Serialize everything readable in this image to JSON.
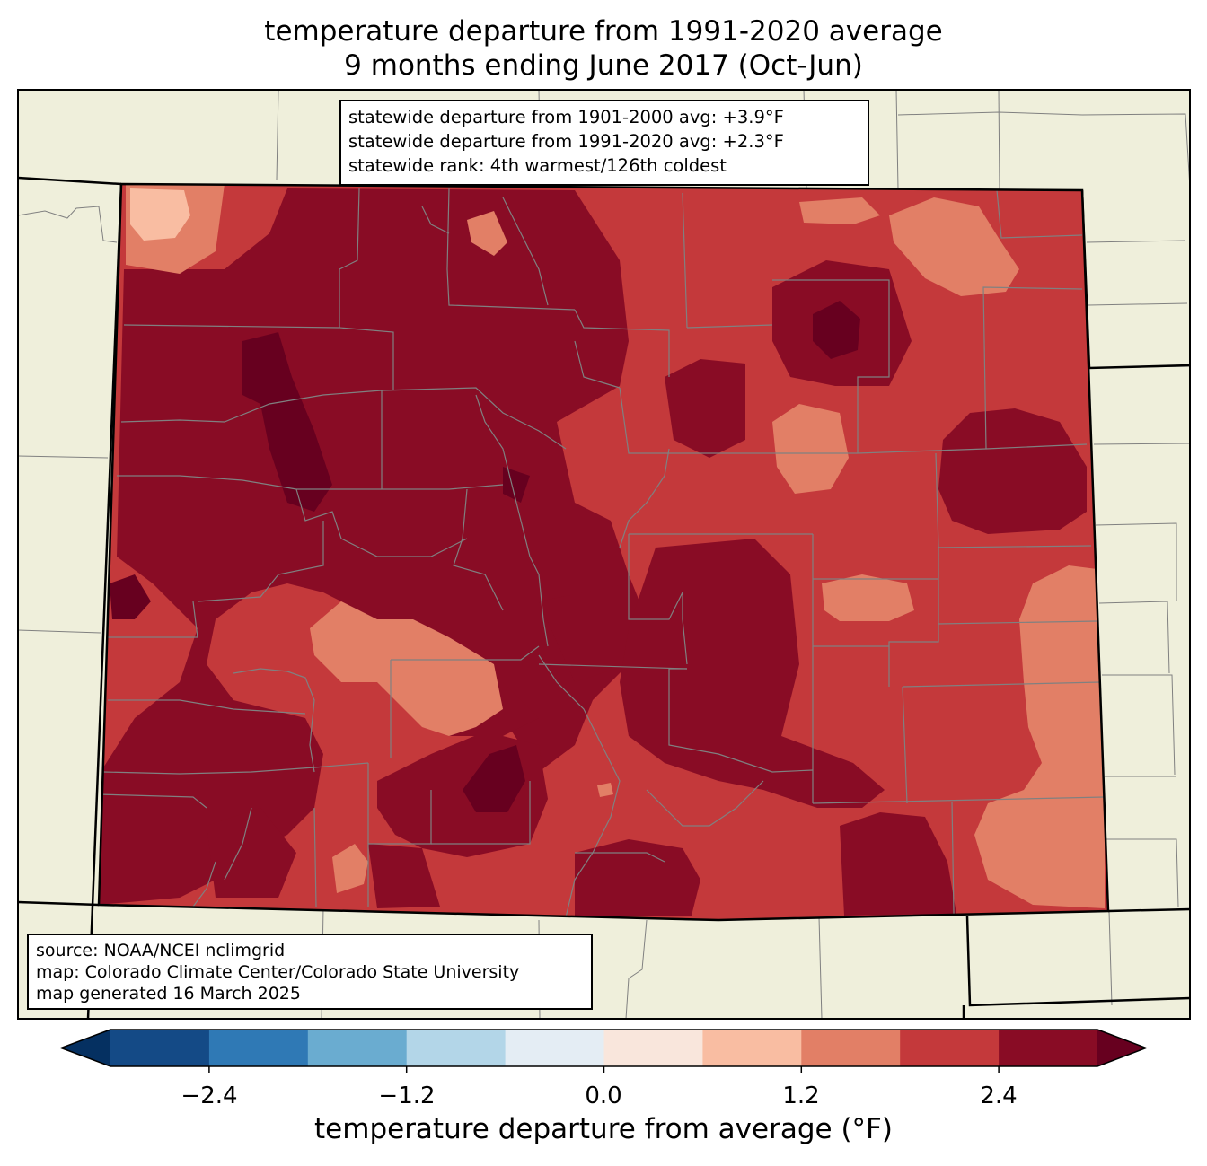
{
  "title": {
    "line1": "temperature departure from 1991-2020 average",
    "line2": "9 months ending June 2017 (Oct-Jun)"
  },
  "stats": {
    "line1": "statewide departure from 1901-2000 avg: +3.9°F",
    "line2": "statewide departure from 1991-2020 avg: +2.3°F",
    "line3": "statewide rank: 4th warmest/126th coldest"
  },
  "source": {
    "line1": "source: NOAA/NCEI nclimgrid",
    "line2": "map: Colorado Climate Center/Colorado State University",
    "line3": "map generated 16 March 2025"
  },
  "colorbar": {
    "label": "temperature departure from average (°F)",
    "ticks": [
      "−2.4",
      "−1.2",
      "0.0",
      "1.2",
      "2.4"
    ],
    "bins": [
      {
        "from": -3.0,
        "to": -2.4,
        "color": "#144a86"
      },
      {
        "from": -2.4,
        "to": -1.8,
        "color": "#2f79b5"
      },
      {
        "from": -1.8,
        "to": -1.2,
        "color": "#6aacd0"
      },
      {
        "from": -1.2,
        "to": -0.6,
        "color": "#b3d6e8"
      },
      {
        "from": -0.6,
        "to": 0.0,
        "color": "#e4edf4"
      },
      {
        "from": 0.0,
        "to": 0.6,
        "color": "#f9e6dc"
      },
      {
        "from": 0.6,
        "to": 1.2,
        "color": "#f9bda2"
      },
      {
        "from": 1.2,
        "to": 1.8,
        "color": "#e27f66"
      },
      {
        "from": 1.8,
        "to": 2.4,
        "color": "#c4393b"
      },
      {
        "from": 2.4,
        "to": 3.0,
        "color": "#890c25"
      }
    ],
    "under_color": "#053061",
    "over_color": "#67001f"
  },
  "colors": {
    "background_land": "#efefdb",
    "state_fill_base": "#c4393b",
    "county_lines": "#808080"
  }
}
